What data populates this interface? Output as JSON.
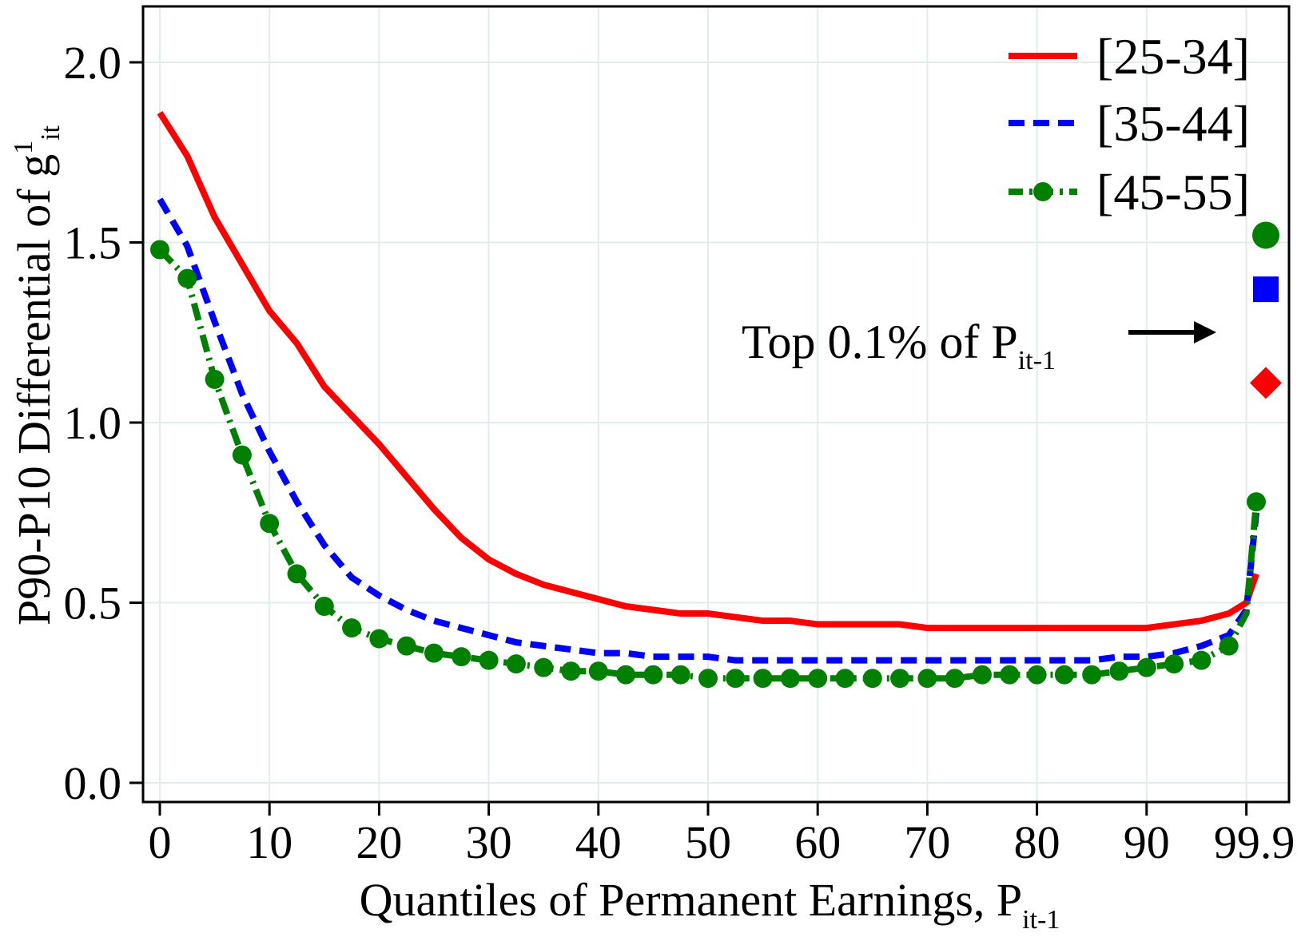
{
  "chart_data": {
    "type": "line",
    "title": "",
    "xlabel": {
      "main": "Quantiles of Permanent Earnings, P",
      "sub": "it-1"
    },
    "ylabel": {
      "main": "P90-P10 Differential of g",
      "sup": "1",
      "sub": "it"
    },
    "ylim": [
      0,
      2.15
    ],
    "yticks": [
      "0.0",
      "0.5",
      "1.0",
      "1.5",
      "2.0"
    ],
    "ytick_values": [
      0,
      0.5,
      1.0,
      1.5,
      2.0
    ],
    "xticks": [
      "0",
      "10",
      "20",
      "30",
      "40",
      "50",
      "60",
      "70",
      "80",
      "90",
      "99.9"
    ],
    "xtick_values": [
      0,
      10,
      20,
      30,
      40,
      50,
      60,
      70,
      80,
      90,
      99.1
    ],
    "grid": true,
    "legend_position": "top-right",
    "x": [
      0,
      2.5,
      5,
      7.5,
      10,
      12.5,
      15,
      17.5,
      20,
      22.5,
      25,
      27.5,
      30,
      32.5,
      35,
      37.5,
      40,
      42.5,
      45,
      47.5,
      50,
      52.5,
      55,
      57.5,
      60,
      62.5,
      65,
      67.5,
      70,
      72.5,
      75,
      77.5,
      80,
      82.5,
      85,
      87.5,
      90,
      92.5,
      95,
      97.5,
      99.1,
      100
    ],
    "series": [
      {
        "name": "[25-34]",
        "color": "#ff0000",
        "style": "solid",
        "values": [
          1.86,
          1.74,
          1.57,
          1.44,
          1.31,
          1.22,
          1.1,
          1.02,
          0.94,
          0.85,
          0.76,
          0.68,
          0.62,
          0.58,
          0.55,
          0.53,
          0.51,
          0.49,
          0.48,
          0.47,
          0.47,
          0.46,
          0.45,
          0.45,
          0.44,
          0.44,
          0.44,
          0.44,
          0.43,
          0.43,
          0.43,
          0.43,
          0.43,
          0.43,
          0.43,
          0.43,
          0.43,
          0.44,
          0.45,
          0.47,
          0.5,
          0.58
        ],
        "top_marker": {
          "value": 1.11,
          "shape": "diamond"
        }
      },
      {
        "name": "[35-44]",
        "color": "#0000ff",
        "style": "dashed",
        "values": [
          1.62,
          1.49,
          1.28,
          1.08,
          0.92,
          0.78,
          0.66,
          0.57,
          0.52,
          0.48,
          0.45,
          0.43,
          0.41,
          0.39,
          0.38,
          0.37,
          0.36,
          0.36,
          0.35,
          0.35,
          0.35,
          0.34,
          0.34,
          0.34,
          0.34,
          0.34,
          0.34,
          0.34,
          0.34,
          0.34,
          0.34,
          0.34,
          0.34,
          0.34,
          0.34,
          0.35,
          0.35,
          0.36,
          0.38,
          0.41,
          0.48,
          0.75
        ],
        "top_marker": {
          "value": 1.37,
          "shape": "square"
        }
      },
      {
        "name": "[45-55]",
        "color": "#008000",
        "style": "dash-dot-markers",
        "values": [
          1.48,
          1.4,
          1.12,
          0.91,
          0.72,
          0.58,
          0.49,
          0.43,
          0.4,
          0.38,
          0.36,
          0.35,
          0.34,
          0.33,
          0.32,
          0.31,
          0.31,
          0.3,
          0.3,
          0.3,
          0.29,
          0.29,
          0.29,
          0.29,
          0.29,
          0.29,
          0.29,
          0.29,
          0.29,
          0.29,
          0.3,
          0.3,
          0.3,
          0.3,
          0.3,
          0.31,
          0.32,
          0.33,
          0.34,
          0.38,
          0.47,
          0.78
        ],
        "top_marker": {
          "value": 1.52,
          "shape": "circle"
        }
      }
    ],
    "annotation": {
      "text": "Top 0.1% of P",
      "sub": "it-1"
    }
  }
}
